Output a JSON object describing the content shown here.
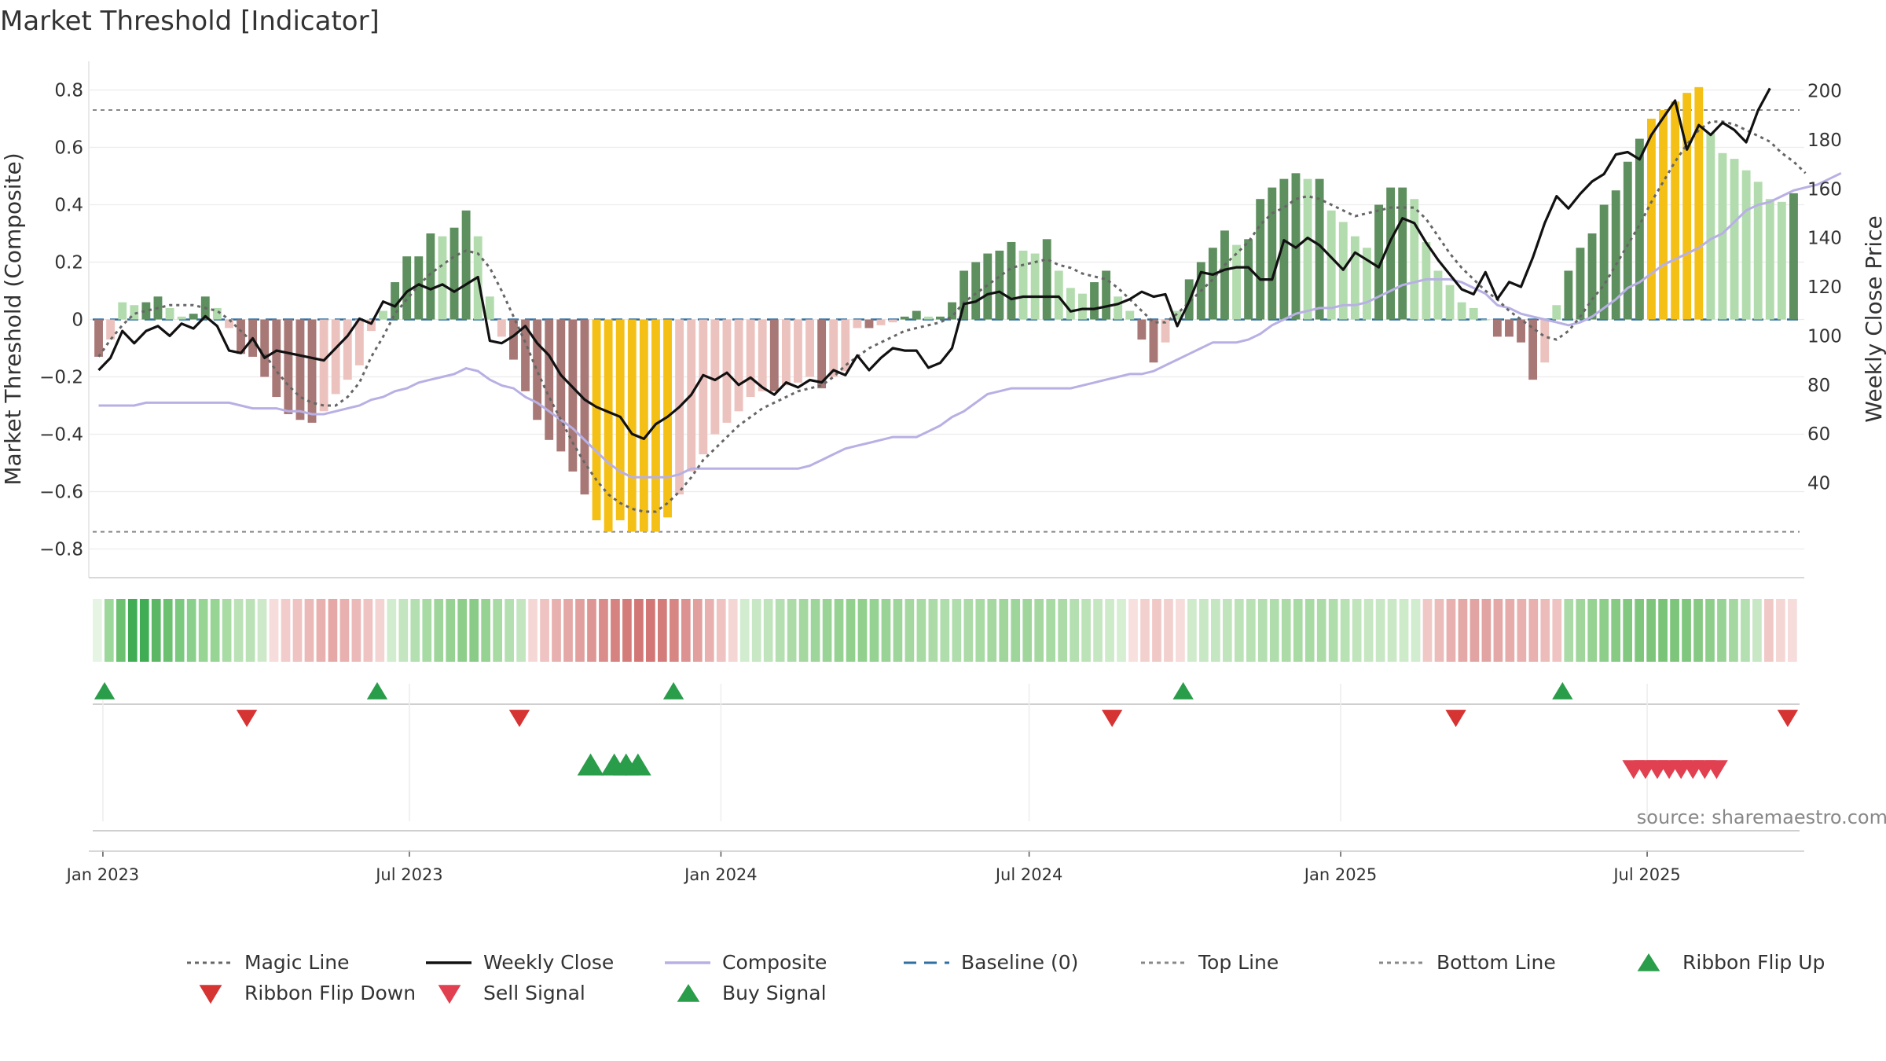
{
  "chart_data": {
    "type": "bar",
    "title": "Market Threshold [Indicator]",
    "ylabel": "Market Threshold (Composite)",
    "y2label": "Weekly Close Price",
    "ylim": [
      -0.9,
      0.9
    ],
    "y2lim": [
      38,
      203
    ],
    "yticks": [
      "0.8",
      "0.6",
      "0.4",
      "0.2",
      "0",
      "−0.2",
      "−0.4",
      "−0.6",
      "−0.8"
    ],
    "y2ticks": [
      "200",
      "180",
      "160",
      "140",
      "120",
      "100",
      "80",
      "60",
      "40"
    ],
    "top_line": 0.73,
    "bottom_line": -0.74,
    "baseline": 0,
    "x_start": "2022-12-26",
    "x_end": "2025-09-29",
    "date_ticks": [
      "Jan 2023",
      "Jul 2023",
      "Jan 2024",
      "Jul 2024",
      "Jan 2025",
      "Jul 2025"
    ],
    "grid": true,
    "composite_bars": [
      -0.13,
      -0.07,
      0.06,
      0.05,
      0.06,
      0.08,
      0.04,
      0.01,
      0.02,
      0.08,
      0.04,
      -0.03,
      -0.12,
      -0.13,
      -0.2,
      -0.27,
      -0.33,
      -0.35,
      -0.36,
      -0.32,
      -0.26,
      -0.21,
      -0.16,
      -0.04,
      0.03,
      0.13,
      0.22,
      0.22,
      0.3,
      0.29,
      0.32,
      0.38,
      0.29,
      0.08,
      -0.06,
      -0.14,
      -0.25,
      -0.35,
      -0.42,
      -0.46,
      -0.53,
      -0.61,
      -0.7,
      -0.74,
      -0.7,
      -0.74,
      -0.74,
      -0.74,
      -0.69,
      -0.61,
      -0.53,
      -0.47,
      -0.4,
      -0.36,
      -0.32,
      -0.27,
      -0.25,
      -0.25,
      -0.23,
      -0.22,
      -0.2,
      -0.24,
      -0.2,
      -0.18,
      -0.03,
      -0.03,
      -0.02,
      -0.01,
      0.01,
      0.03,
      0.01,
      0.01,
      0.06,
      0.17,
      0.2,
      0.23,
      0.24,
      0.27,
      0.24,
      0.23,
      0.28,
      0.17,
      0.11,
      0.09,
      0.13,
      0.17,
      0.08,
      0.03,
      -0.07,
      -0.15,
      -0.08,
      0.03,
      0.14,
      0.2,
      0.25,
      0.31,
      0.26,
      0.28,
      0.42,
      0.46,
      0.49,
      0.51,
      0.49,
      0.49,
      0.38,
      0.34,
      0.29,
      0.25,
      0.4,
      0.46,
      0.46,
      0.42,
      0.27,
      0.17,
      0.12,
      0.06,
      0.04,
      0.0,
      -0.06,
      -0.06,
      -0.08,
      -0.21,
      -0.15,
      0.05,
      0.17,
      0.25,
      0.3,
      0.4,
      0.45,
      0.55,
      0.63,
      0.7,
      0.73,
      0.76,
      0.79,
      0.81,
      0.65,
      0.58,
      0.56,
      0.52,
      0.48,
      0.42,
      0.41,
      0.44
    ],
    "bar_colors": {
      "pos_strong": "#5e8f5e",
      "pos_weak": "#b3dcae",
      "neg_strong": "#a87876",
      "neg_weak": "#ecc2be",
      "extreme": "#f5c016"
    },
    "magic_line": [
      -0.13,
      -0.07,
      -0.02,
      0.02,
      0.03,
      0.04,
      0.05,
      0.05,
      0.05,
      0.04,
      0.03,
      0.0,
      -0.04,
      -0.08,
      -0.12,
      -0.18,
      -0.23,
      -0.27,
      -0.29,
      -0.3,
      -0.3,
      -0.27,
      -0.22,
      -0.13,
      -0.06,
      0.02,
      0.07,
      0.12,
      0.16,
      0.19,
      0.22,
      0.24,
      0.23,
      0.18,
      0.1,
      0.01,
      -0.08,
      -0.18,
      -0.27,
      -0.35,
      -0.43,
      -0.5,
      -0.56,
      -0.61,
      -0.64,
      -0.66,
      -0.67,
      -0.67,
      -0.64,
      -0.6,
      -0.55,
      -0.49,
      -0.45,
      -0.41,
      -0.37,
      -0.34,
      -0.31,
      -0.29,
      -0.27,
      -0.25,
      -0.24,
      -0.23,
      -0.2,
      -0.16,
      -0.13,
      -0.1,
      -0.08,
      -0.06,
      -0.04,
      -0.03,
      -0.02,
      -0.01,
      0.01,
      0.06,
      0.09,
      0.12,
      0.15,
      0.18,
      0.19,
      0.2,
      0.21,
      0.19,
      0.18,
      0.16,
      0.15,
      0.14,
      0.11,
      0.07,
      0.03,
      -0.01,
      -0.01,
      0.02,
      0.06,
      0.1,
      0.14,
      0.19,
      0.23,
      0.27,
      0.33,
      0.37,
      0.39,
      0.42,
      0.43,
      0.42,
      0.4,
      0.38,
      0.36,
      0.37,
      0.38,
      0.39,
      0.39,
      0.39,
      0.35,
      0.29,
      0.23,
      0.18,
      0.14,
      0.1,
      0.07,
      0.03,
      0.0,
      -0.03,
      -0.06,
      -0.07,
      -0.04,
      0.01,
      0.07,
      0.12,
      0.19,
      0.26,
      0.33,
      0.41,
      0.48,
      0.55,
      0.61,
      0.66,
      0.69,
      0.69,
      0.68,
      0.66,
      0.64,
      0.62,
      0.58,
      0.55,
      0.51
    ],
    "composite_line": [
      -0.3,
      -0.3,
      -0.3,
      -0.3,
      -0.29,
      -0.29,
      -0.29,
      -0.29,
      -0.29,
      -0.29,
      -0.29,
      -0.29,
      -0.3,
      -0.31,
      -0.31,
      -0.31,
      -0.32,
      -0.32,
      -0.33,
      -0.33,
      -0.32,
      -0.31,
      -0.3,
      -0.28,
      -0.27,
      -0.25,
      -0.24,
      -0.22,
      -0.21,
      -0.2,
      -0.19,
      -0.17,
      -0.18,
      -0.21,
      -0.23,
      -0.24,
      -0.27,
      -0.29,
      -0.32,
      -0.35,
      -0.38,
      -0.42,
      -0.46,
      -0.5,
      -0.53,
      -0.55,
      -0.55,
      -0.55,
      -0.55,
      -0.54,
      -0.52,
      -0.52,
      -0.52,
      -0.52,
      -0.52,
      -0.52,
      -0.52,
      -0.52,
      -0.52,
      -0.52,
      -0.51,
      -0.49,
      -0.47,
      -0.45,
      -0.44,
      -0.43,
      -0.42,
      -0.41,
      -0.41,
      -0.41,
      -0.39,
      -0.37,
      -0.34,
      -0.32,
      -0.29,
      -0.26,
      -0.25,
      -0.24,
      -0.24,
      -0.24,
      -0.24,
      -0.24,
      -0.24,
      -0.23,
      -0.22,
      -0.21,
      -0.2,
      -0.19,
      -0.19,
      -0.18,
      -0.16,
      -0.14,
      -0.12,
      -0.1,
      -0.08,
      -0.08,
      -0.08,
      -0.07,
      -0.05,
      -0.02,
      0.0,
      0.02,
      0.03,
      0.04,
      0.04,
      0.05,
      0.05,
      0.06,
      0.08,
      0.1,
      0.12,
      0.13,
      0.14,
      0.14,
      0.14,
      0.13,
      0.11,
      0.09,
      0.05,
      0.04,
      0.02,
      0.01,
      0.0,
      -0.01,
      -0.02,
      -0.01,
      0.01,
      0.04,
      0.07,
      0.11,
      0.13,
      0.16,
      0.19,
      0.21,
      0.23,
      0.25,
      0.28,
      0.3,
      0.34,
      0.38,
      0.4,
      0.41,
      0.43,
      0.45,
      0.46,
      0.47,
      0.49,
      0.51
    ],
    "weekly_close": [
      86,
      91,
      102,
      97,
      102,
      104,
      100,
      105,
      103,
      108,
      104,
      94,
      93,
      99,
      91,
      94,
      93,
      92,
      91,
      90,
      95,
      100,
      107,
      105,
      114,
      112,
      118,
      121,
      119,
      121,
      118,
      121,
      124,
      98,
      97,
      100,
      104,
      97,
      92,
      84,
      79,
      74,
      71,
      69,
      67,
      60,
      58,
      64,
      67,
      71,
      76,
      84,
      82,
      85,
      80,
      83,
      79,
      76,
      81,
      79,
      82,
      81,
      86,
      84,
      92,
      86,
      91,
      95,
      94,
      94,
      87,
      89,
      95,
      113,
      114,
      117,
      118,
      115,
      116,
      116,
      116,
      116,
      110,
      111,
      111,
      112,
      113,
      115,
      118,
      116,
      117,
      104,
      114,
      126,
      125,
      127,
      128,
      128,
      123,
      123,
      139,
      136,
      140,
      137,
      132,
      127,
      134,
      131,
      128,
      139,
      148,
      146,
      138,
      131,
      125,
      119,
      117,
      126,
      115,
      122,
      120,
      132,
      146,
      157,
      152,
      158,
      163,
      166,
      174,
      175,
      172,
      182,
      189,
      196,
      176,
      186,
      182,
      187,
      184,
      179,
      192,
      201
    ],
    "ribbon": [
      [
        230,
        244,
        227
      ],
      [
        155,
        216,
        154
      ],
      [
        108,
        193,
        113
      ],
      [
        64,
        173,
        85
      ],
      [
        64,
        173,
        85
      ],
      [
        92,
        183,
        101
      ],
      [
        108,
        193,
        113
      ],
      [
        123,
        201,
        126
      ],
      [
        138,
        207,
        139
      ],
      [
        150,
        213,
        148
      ],
      [
        150,
        213,
        148
      ],
      [
        169,
        219,
        165
      ],
      [
        187,
        226,
        183
      ],
      [
        187,
        226,
        183
      ],
      [
        206,
        233,
        202
      ],
      [
        246,
        220,
        218
      ],
      [
        241,
        204,
        202
      ],
      [
        238,
        195,
        193
      ],
      [
        235,
        185,
        183
      ],
      [
        232,
        176,
        174
      ],
      [
        230,
        168,
        166
      ],
      [
        232,
        176,
        174
      ],
      [
        235,
        185,
        183
      ],
      [
        238,
        195,
        193
      ],
      [
        243,
        212,
        210
      ],
      [
        210,
        236,
        207
      ],
      [
        195,
        229,
        191
      ],
      [
        180,
        223,
        176
      ],
      [
        168,
        218,
        164
      ],
      [
        158,
        213,
        154
      ],
      [
        150,
        210,
        146
      ],
      [
        142,
        206,
        139
      ],
      [
        138,
        204,
        135
      ],
      [
        150,
        210,
        146
      ],
      [
        168,
        218,
        164
      ],
      [
        180,
        223,
        176
      ],
      [
        195,
        229,
        191
      ],
      [
        245,
        216,
        214
      ],
      [
        238,
        195,
        193
      ],
      [
        232,
        176,
        174
      ],
      [
        228,
        168,
        166
      ],
      [
        225,
        160,
        158
      ],
      [
        222,
        150,
        148
      ],
      [
        218,
        140,
        138
      ],
      [
        214,
        130,
        128
      ],
      [
        212,
        124,
        122
      ],
      [
        210,
        119,
        117
      ],
      [
        210,
        119,
        117
      ],
      [
        212,
        124,
        122
      ],
      [
        215,
        134,
        132
      ],
      [
        220,
        146,
        144
      ],
      [
        225,
        160,
        158
      ],
      [
        232,
        176,
        174
      ],
      [
        238,
        195,
        193
      ],
      [
        244,
        214,
        212
      ],
      [
        210,
        236,
        207
      ],
      [
        200,
        231,
        196
      ],
      [
        192,
        228,
        188
      ],
      [
        180,
        223,
        176
      ],
      [
        172,
        219,
        168
      ],
      [
        164,
        216,
        160
      ],
      [
        158,
        213,
        154
      ],
      [
        154,
        211,
        150
      ],
      [
        150,
        210,
        146
      ],
      [
        146,
        208,
        142
      ],
      [
        146,
        208,
        142
      ],
      [
        150,
        210,
        146
      ],
      [
        154,
        211,
        150
      ],
      [
        158,
        213,
        154
      ],
      [
        164,
        216,
        160
      ],
      [
        168,
        218,
        164
      ],
      [
        172,
        219,
        168
      ],
      [
        176,
        221,
        172
      ],
      [
        176,
        221,
        172
      ],
      [
        172,
        219,
        168
      ],
      [
        168,
        218,
        164
      ],
      [
        164,
        216,
        160
      ],
      [
        160,
        214,
        156
      ],
      [
        158,
        213,
        154
      ],
      [
        160,
        214,
        156
      ],
      [
        164,
        216,
        160
      ],
      [
        168,
        218,
        164
      ],
      [
        172,
        219,
        168
      ],
      [
        180,
        223,
        176
      ],
      [
        188,
        226,
        184
      ],
      [
        196,
        230,
        192
      ],
      [
        205,
        234,
        201
      ],
      [
        214,
        238,
        210
      ],
      [
        247,
        224,
        222
      ],
      [
        242,
        208,
        206
      ],
      [
        240,
        200,
        198
      ],
      [
        242,
        208,
        206
      ],
      [
        246,
        220,
        218
      ],
      [
        208,
        235,
        204
      ],
      [
        200,
        231,
        196
      ],
      [
        196,
        230,
        192
      ],
      [
        192,
        228,
        188
      ],
      [
        188,
        226,
        184
      ],
      [
        184,
        225,
        180
      ],
      [
        180,
        223,
        176
      ],
      [
        176,
        221,
        172
      ],
      [
        172,
        219,
        168
      ],
      [
        168,
        218,
        164
      ],
      [
        168,
        218,
        164
      ],
      [
        172,
        219,
        168
      ],
      [
        176,
        221,
        172
      ],
      [
        184,
        225,
        180
      ],
      [
        192,
        228,
        188
      ],
      [
        198,
        231,
        194
      ],
      [
        200,
        231,
        196
      ],
      [
        202,
        232,
        198
      ],
      [
        205,
        234,
        201
      ],
      [
        210,
        236,
        207
      ],
      [
        240,
        200,
        198
      ],
      [
        236,
        188,
        186
      ],
      [
        232,
        176,
        174
      ],
      [
        228,
        168,
        166
      ],
      [
        226,
        164,
        162
      ],
      [
        226,
        164,
        162
      ],
      [
        228,
        168,
        166
      ],
      [
        230,
        172,
        170
      ],
      [
        232,
        176,
        174
      ],
      [
        232,
        176,
        174
      ],
      [
        236,
        188,
        186
      ],
      [
        238,
        195,
        193
      ],
      [
        170,
        218,
        166
      ],
      [
        160,
        214,
        156
      ],
      [
        150,
        210,
        146
      ],
      [
        142,
        206,
        139
      ],
      [
        135,
        202,
        132
      ],
      [
        130,
        200,
        128
      ],
      [
        126,
        198,
        124
      ],
      [
        124,
        197,
        122
      ],
      [
        122,
        196,
        120
      ],
      [
        124,
        197,
        122
      ],
      [
        128,
        199,
        126
      ],
      [
        134,
        201,
        131
      ],
      [
        142,
        206,
        139
      ],
      [
        152,
        210,
        148
      ],
      [
        164,
        216,
        160
      ],
      [
        180,
        223,
        176
      ],
      [
        200,
        231,
        196
      ],
      [
        240,
        200,
        198
      ],
      [
        244,
        214,
        212
      ],
      [
        246,
        220,
        218
      ]
    ],
    "ribbon_flip_up": [
      "2023-01-02",
      "2023-06-12",
      "2023-12-04",
      "2024-09-30",
      "2025-05-12"
    ],
    "ribbon_flip_down": [
      "2023-03-27",
      "2023-09-04",
      "2024-08-19",
      "2025-03-10",
      "2025-09-22"
    ],
    "buy_signal": [
      "2023-10-16",
      "2023-10-30",
      "2023-11-06",
      "2023-11-13"
    ],
    "sell_signal": [
      "2025-06-23",
      "2025-06-30",
      "2025-07-07",
      "2025-07-14",
      "2025-07-21",
      "2025-07-28",
      "2025-08-04",
      "2025-08-11"
    ],
    "source": "source: sharemaestro.com",
    "legend": [
      {
        "label": "Magic Line",
        "kind": "dotted",
        "color": "#666666"
      },
      {
        "label": "Weekly Close",
        "kind": "solid",
        "color": "#111111"
      },
      {
        "label": "Composite",
        "kind": "solid",
        "color": "#b8b0e4"
      },
      {
        "label": "Baseline (0)",
        "kind": "dashed",
        "color": "#2f6e9e"
      },
      {
        "label": "Top Line",
        "kind": "dotted",
        "color": "#888888"
      },
      {
        "label": "Bottom Line",
        "kind": "dotted",
        "color": "#888888"
      },
      {
        "label": "Ribbon Flip Up",
        "kind": "tri-up",
        "color": "#2a9d4a"
      },
      {
        "label": "Ribbon Flip Down",
        "kind": "tri-down",
        "color": "#d63333"
      },
      {
        "label": "Sell Signal",
        "kind": "tri-down",
        "color": "#e04050"
      },
      {
        "label": "Buy Signal",
        "kind": "tri-up",
        "color": "#2a9d4a"
      }
    ]
  }
}
